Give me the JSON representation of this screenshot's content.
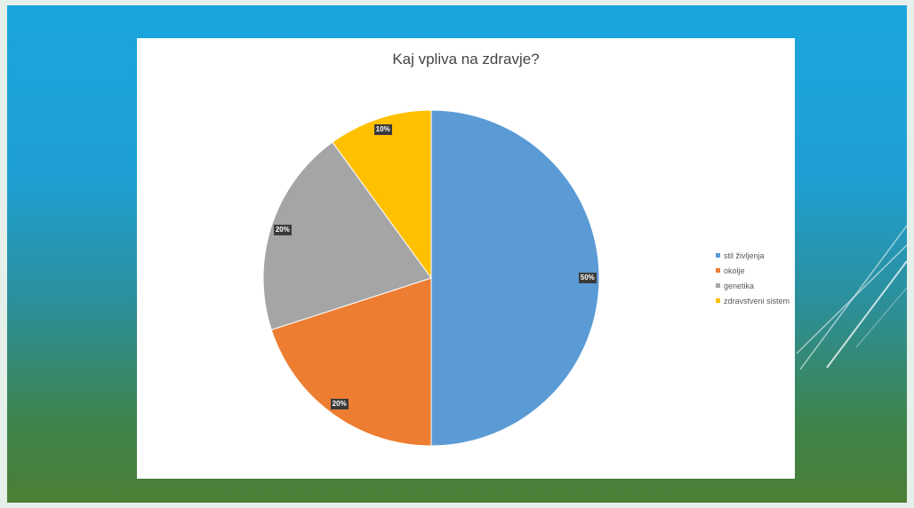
{
  "chart_data": {
    "type": "pie",
    "title": "Kaj vpliva na zdravje?",
    "categories": [
      "stil življenja",
      "okolje",
      "genetika",
      "zdravstveni sistem"
    ],
    "values": [
      50,
      20,
      20,
      10
    ],
    "labels": [
      "50%",
      "20%",
      "20%",
      "10%"
    ],
    "colors": [
      "#5b9bd5",
      "#ed7d31",
      "#a5a5a5",
      "#ffc000"
    ],
    "legend_position": "right",
    "start_angle": "top, clockwise"
  },
  "theme": {
    "background_colors": [
      "#1aa6de",
      "#2c8f9a",
      "#4b7f36"
    ],
    "chart_background": "#ffffff",
    "label_background": "#3a3a3a"
  }
}
